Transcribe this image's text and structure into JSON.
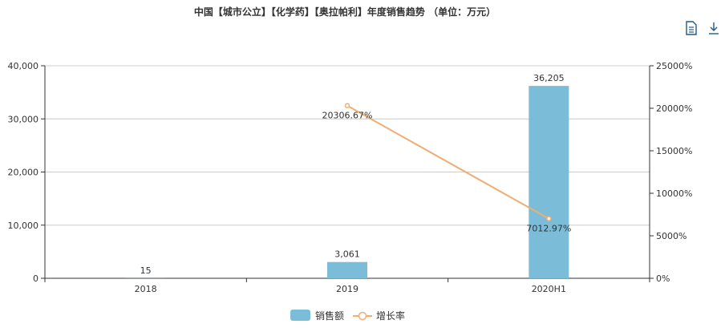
{
  "chart_data": {
    "type": "bar",
    "title": "中国【城市公立】【化学药】【奥拉帕利】年度销售趋势 （单位：万元）",
    "categories": [
      "2018",
      "2019",
      "2020H1"
    ],
    "series": [
      {
        "name": "销售额",
        "type": "bar",
        "axis": "left",
        "color": "#7bbcd9",
        "values": [
          15,
          3061,
          36205
        ],
        "labels": [
          "15",
          "3,061",
          "36,205"
        ]
      },
      {
        "name": "增长率",
        "type": "line",
        "axis": "right",
        "color": "#f0ad73",
        "values": [
          null,
          20306.67,
          7012.97
        ],
        "labels": [
          "",
          "20306.67%",
          "7012.97%"
        ]
      }
    ],
    "y_left": {
      "min": 0,
      "max": 40000,
      "ticks": [
        "0",
        "10,000",
        "20,000",
        "30,000",
        "40,000"
      ]
    },
    "y_right": {
      "min": 0,
      "max": 25000,
      "ticks": [
        "0%",
        "5000%",
        "10000%",
        "15000%",
        "20000%",
        "25000%"
      ]
    },
    "grid": true,
    "legend_position": "bottom-center"
  },
  "toolbar": {
    "icons": [
      "data-view-icon",
      "download-icon"
    ]
  }
}
